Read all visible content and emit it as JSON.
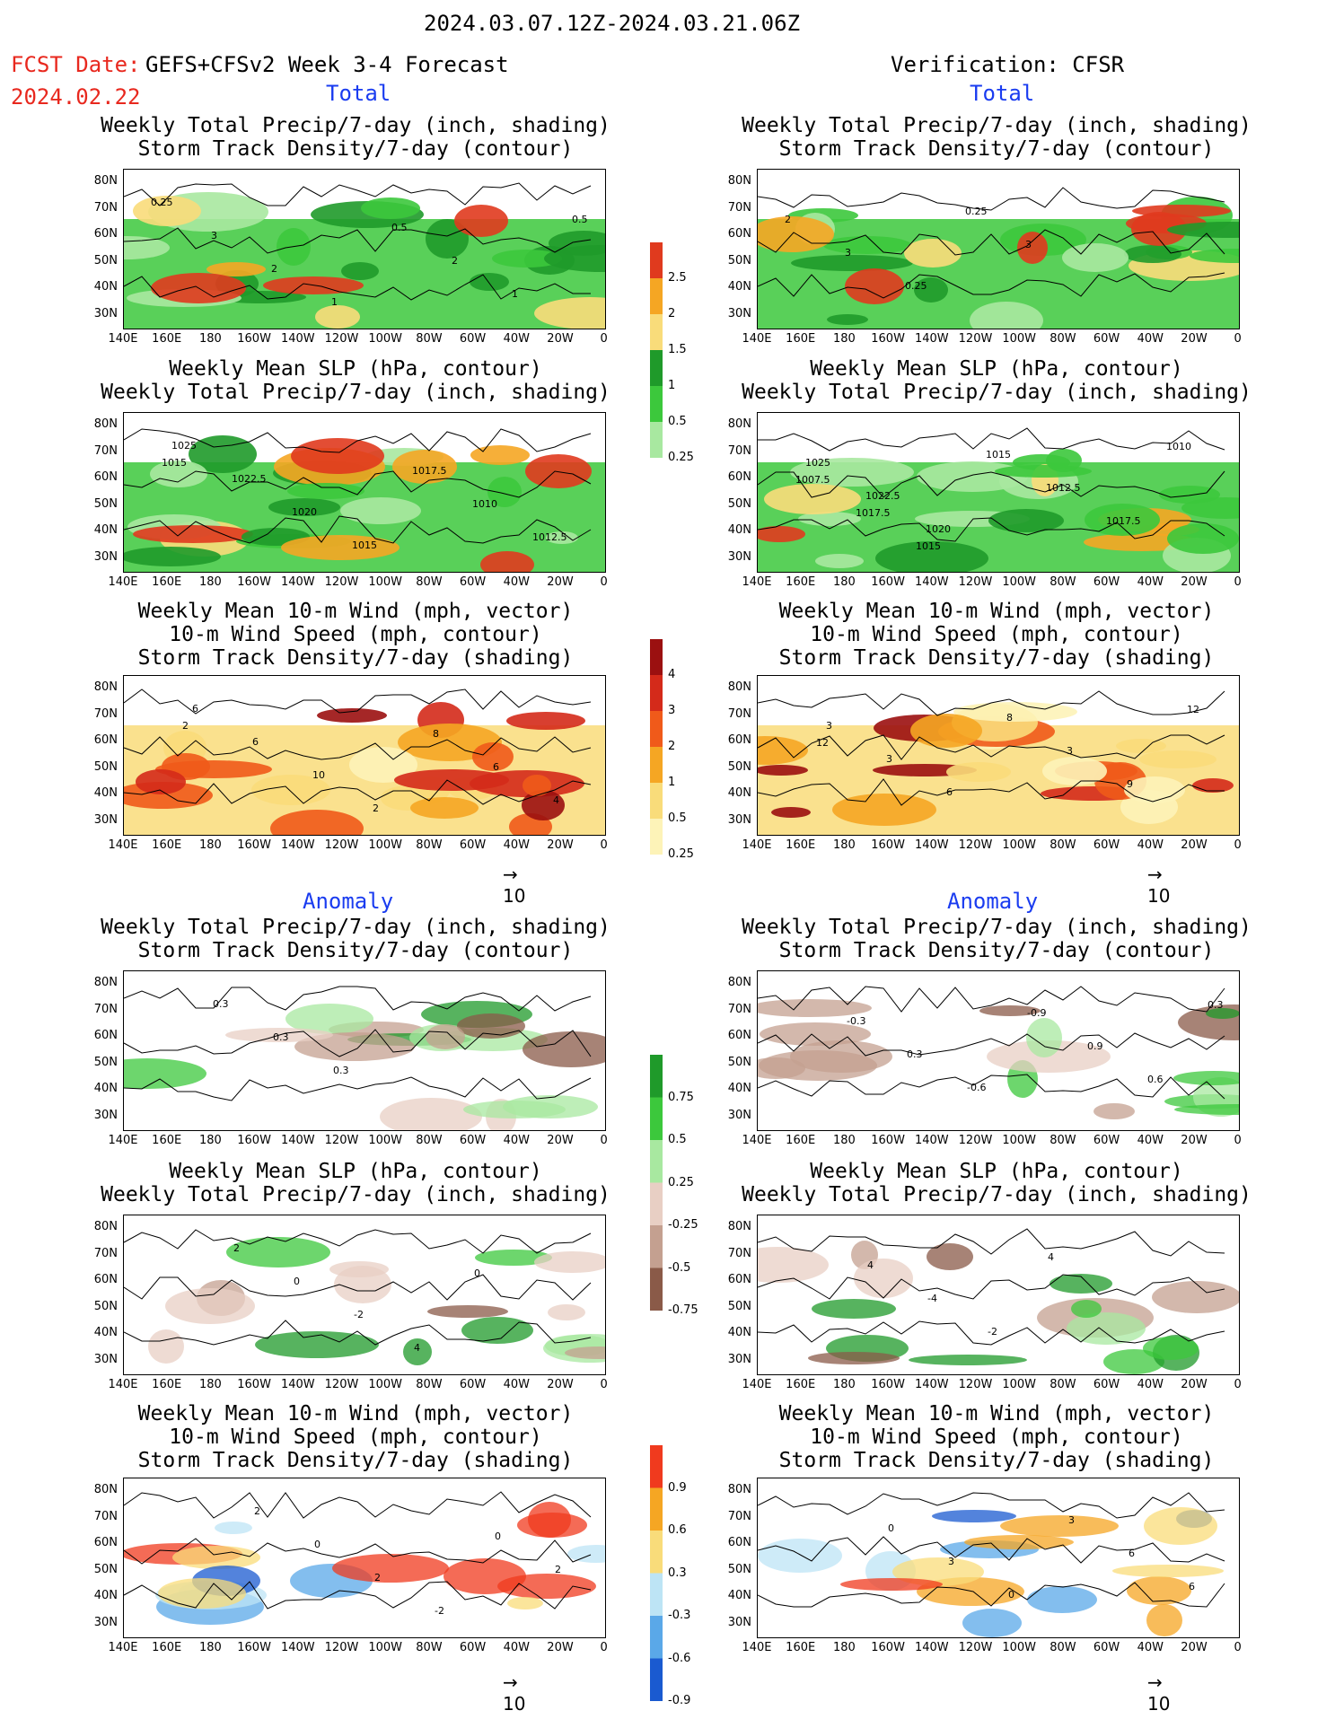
{
  "header": {
    "period": "2024.03.07.12Z-2024.03.21.06Z",
    "fcst_label": "FCST Date:",
    "fcst_model": "GEFS+CFSv2 Week 3-4 Forecast",
    "fcst_date": "2024.02.22",
    "verification": "Verification: CFSR"
  },
  "sections": {
    "total": "Total",
    "anomaly": "Anomaly"
  },
  "titles": {
    "precip_storm": "Weekly Total Precip/7-day (inch, shading)\nStorm Track Density/7-day (contour)",
    "slp_precip": "Weekly Mean SLP (hPa, contour)\nWeekly Total Precip/7-day (inch, shading)",
    "wind": "Weekly Mean 10-m Wind (mph, vector)\n10-m Wind Speed (mph, contour)\nStorm Track Density/7-day (shading)"
  },
  "axes": {
    "lat": [
      "80N",
      "70N",
      "60N",
      "50N",
      "40N",
      "30N"
    ],
    "lon": [
      "140E",
      "160E",
      "180",
      "160W",
      "140W",
      "120W",
      "100W",
      "80W",
      "60W",
      "40W",
      "20W",
      "0"
    ]
  },
  "vector_ref": "10",
  "colorbars": {
    "precip_total": {
      "ticks": [
        "2.5",
        "2",
        "1.5",
        "1",
        "0.5",
        "0.25"
      ],
      "colors": [
        "#e03a1e",
        "#f5a623",
        "#f9dc7a",
        "#1f9a2a",
        "#3cc83c",
        "#a8e8a0"
      ]
    },
    "storm_total": {
      "ticks": [
        "4",
        "3",
        "2",
        "1",
        "0.5",
        "0.25"
      ],
      "colors": [
        "#9b1010",
        "#d42a1a",
        "#f05a1a",
        "#f5a623",
        "#f9dc7a",
        "#fdf3b8"
      ]
    },
    "precip_anom": {
      "ticks": [
        "0.75",
        "0.5",
        "0.25",
        "-0.25",
        "-0.5",
        "-0.75"
      ],
      "colors": [
        "#1f9a2a",
        "#3cc83c",
        "#a8e8a0",
        "#e8cfc4",
        "#c4a090",
        "#8a5a48"
      ]
    },
    "storm_anom": {
      "ticks": [
        "0.9",
        "0.6",
        "0.3",
        "-0.3",
        "-0.6",
        "-0.9"
      ],
      "colors": [
        "#f03a1e",
        "#f5a623",
        "#f9dc7a",
        "#bde4f5",
        "#5aa8e8",
        "#1a5ad0"
      ]
    }
  },
  "contour_labels": {
    "f_total_precip": [
      "0.25",
      "3",
      "2",
      "1",
      "0.5",
      "2",
      "1",
      "0.5"
    ],
    "v_total_precip": [
      "2",
      "3",
      "0.25",
      "0.25",
      "3"
    ],
    "f_total_slp": [
      "1025",
      "1022.5",
      "1020",
      "1015",
      "1017.5",
      "1010",
      "1012.5",
      "1015"
    ],
    "v_total_slp": [
      "1025",
      "1022.5",
      "1020",
      "1015",
      "1012.5",
      "1017.5",
      "1010",
      "1007.5",
      "1017.5",
      "1015"
    ],
    "f_total_wind": [
      "6",
      "6",
      "10",
      "2",
      "8",
      "6",
      "4",
      "2"
    ],
    "v_total_wind": [
      "3",
      "3",
      "6",
      "8",
      "3",
      "9",
      "12",
      "12"
    ],
    "f_anom_precip": [
      "0.3",
      "0.3",
      "0.3"
    ],
    "v_anom_precip": [
      "-0.3",
      "0.3",
      "-0.6",
      "-0.9",
      "0.9",
      "0.6",
      "0.3"
    ],
    "f_anom_slp": [
      "2",
      "0",
      "-2",
      "4",
      "0"
    ],
    "v_anom_slp": [
      "4",
      "-4",
      "-2",
      "4"
    ],
    "f_anom_wind": [
      "2",
      "0",
      "2",
      "-2",
      "0",
      "2"
    ],
    "v_anom_wind": [
      "0",
      "3",
      "0",
      "3",
      "6",
      "6"
    ]
  }
}
